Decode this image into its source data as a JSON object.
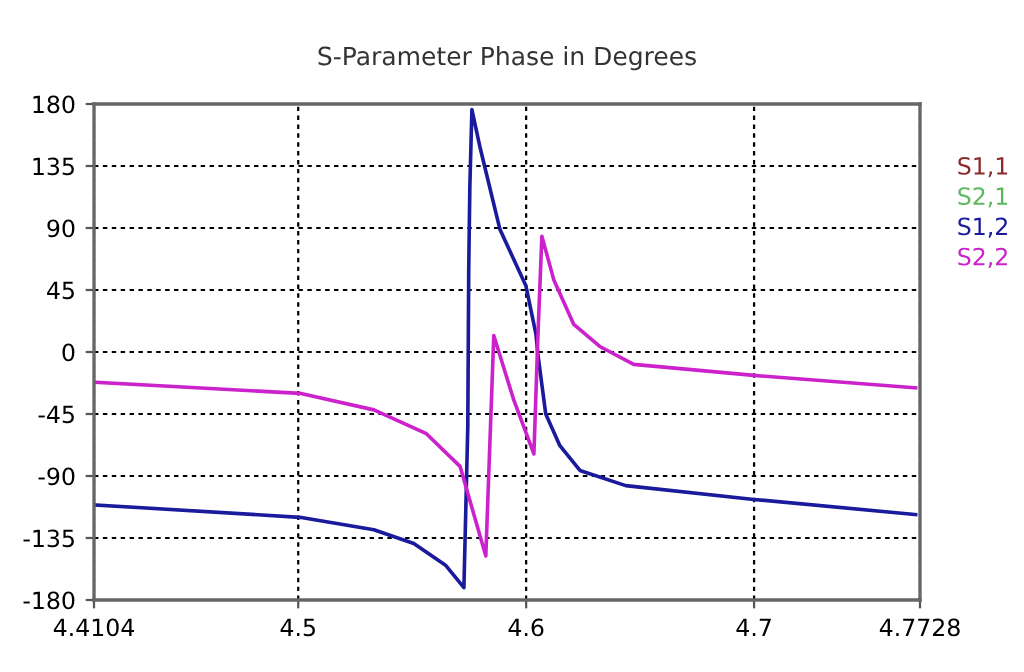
{
  "chart_data": {
    "type": "line",
    "title": "S-Parameter Phase in Degrees",
    "xlim": [
      4.4104,
      4.7728
    ],
    "xticks": [
      4.4104,
      4.5,
      4.6,
      4.7,
      4.7728
    ],
    "ylim": [
      -180,
      180
    ],
    "yticks": [
      180,
      135,
      90,
      45,
      0,
      -45,
      -90,
      -135,
      -180
    ],
    "grid": true,
    "legend": "right",
    "marker": "none",
    "line_style": "solid",
    "series": [
      {
        "name": "S1,1",
        "color": "#8b2a2a"
      },
      {
        "name": "S2,1",
        "color": "#5cb85c"
      },
      {
        "name": "S1,2",
        "color": "#1a1a9c",
        "x": [
          4.4113,
          4.5007,
          4.5332,
          4.5507,
          4.5648,
          4.5727,
          4.5744,
          4.5748,
          4.5753,
          4.5762,
          4.5797,
          4.5885,
          4.5999,
          4.6043,
          4.6051,
          4.6086,
          4.6148,
          4.6236,
          4.6437,
          4.6999,
          4.7709
        ],
        "values": [
          -111,
          -120,
          -129,
          -139,
          -155,
          -171,
          -54,
          59,
          120,
          176,
          149,
          89,
          48,
          13,
          -1,
          -45,
          -68,
          -86,
          -97,
          -107,
          -118
        ]
      },
      {
        "name": "S2,2",
        "color": "#cc22cc",
        "x": [
          4.4113,
          4.5007,
          4.5332,
          4.556,
          4.571,
          4.5823,
          4.5858,
          4.5946,
          4.6034,
          4.6051,
          4.6069,
          4.6122,
          4.6209,
          4.6323,
          4.6472,
          4.6999,
          4.7709
        ],
        "values": [
          -22,
          -30,
          -42,
          -59,
          -83,
          -148,
          12,
          -35,
          -74,
          9,
          84,
          52,
          20,
          4,
          -9,
          -17,
          -26
        ]
      }
    ]
  }
}
